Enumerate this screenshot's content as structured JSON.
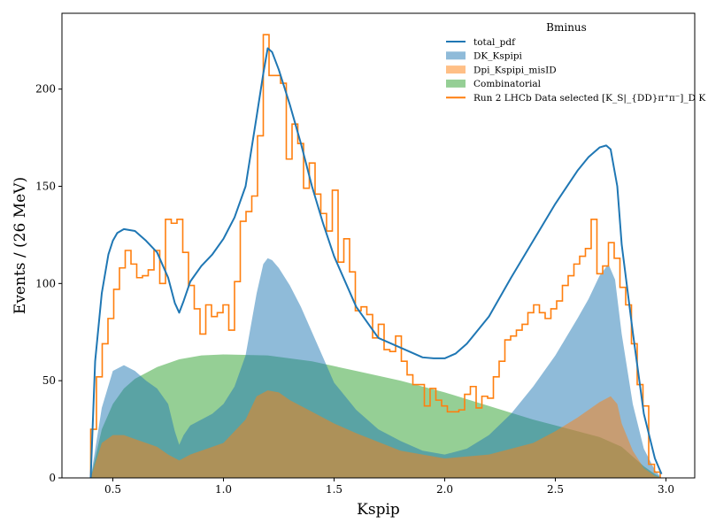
{
  "chart_data": {
    "type": "area",
    "title": "",
    "xlabel": "Kspip",
    "ylabel": "Events / (26 MeV)",
    "xlim": [
      0.27,
      3.13
    ],
    "ylim": [
      0,
      239
    ],
    "xticks": [
      0.5,
      1.0,
      1.5,
      2.0,
      2.5,
      3.0
    ],
    "xtick_labels": [
      "0.5",
      "1.0",
      "1.5",
      "2.0",
      "2.5",
      "3.0"
    ],
    "yticks": [
      0,
      50,
      100,
      150,
      200
    ],
    "ytick_labels": [
      "0",
      "50",
      "100",
      "150",
      "200"
    ],
    "grid": false,
    "legend": {
      "title": "Bminus",
      "placement": "top-right",
      "entries": [
        {
          "label": "total_pdf",
          "kind": "line",
          "color": "#1f77b4"
        },
        {
          "label": "DK_Kspipi",
          "kind": "fill",
          "color": "#1f77b4"
        },
        {
          "label": "Dpi_Kspipi_misID",
          "kind": "fill",
          "color": "#ff7f0e"
        },
        {
          "label": "Combinatorial",
          "kind": "fill",
          "color": "#2ca02c"
        },
        {
          "label": "Run 2 LHCb Data selected [K_S|_{DD}π⁺π⁻]_D K",
          "kind": "line",
          "color": "#ff7f0e"
        }
      ]
    },
    "series": [
      {
        "name": "total_pdf",
        "kind": "line",
        "color": "#1f77b4",
        "x": [
          0.4,
          0.42,
          0.45,
          0.48,
          0.5,
          0.52,
          0.55,
          0.6,
          0.65,
          0.7,
          0.75,
          0.78,
          0.8,
          0.82,
          0.85,
          0.9,
          0.95,
          1.0,
          1.05,
          1.1,
          1.15,
          1.18,
          1.2,
          1.22,
          1.25,
          1.3,
          1.35,
          1.4,
          1.45,
          1.5,
          1.6,
          1.7,
          1.8,
          1.9,
          1.95,
          2.0,
          2.05,
          2.1,
          2.2,
          2.3,
          2.4,
          2.5,
          2.6,
          2.65,
          2.7,
          2.73,
          2.75,
          2.78,
          2.8,
          2.85,
          2.9,
          2.95,
          2.98
        ],
        "y": [
          0,
          60,
          95,
          115,
          122,
          126,
          128,
          127,
          122,
          116,
          103,
          90,
          85,
          91,
          101,
          109,
          115,
          123,
          134,
          150,
          186,
          208,
          221,
          219,
          210,
          192,
          172,
          150,
          131,
          114,
          88,
          72,
          67,
          62,
          61.5,
          61.5,
          64,
          69,
          83,
          103,
          122,
          141,
          158,
          165,
          170,
          171,
          169,
          150,
          120,
          75,
          33,
          10,
          2
        ]
      },
      {
        "name": "DK_Kspipi",
        "kind": "area",
        "color": "#1f77b4",
        "opacity": 0.5,
        "x": [
          0.4,
          0.45,
          0.5,
          0.55,
          0.6,
          0.65,
          0.7,
          0.75,
          0.78,
          0.8,
          0.82,
          0.85,
          0.9,
          0.95,
          1.0,
          1.05,
          1.1,
          1.15,
          1.18,
          1.2,
          1.22,
          1.25,
          1.3,
          1.35,
          1.4,
          1.45,
          1.5,
          1.6,
          1.7,
          1.8,
          1.9,
          2.0,
          2.1,
          2.2,
          2.3,
          2.4,
          2.5,
          2.6,
          2.65,
          2.7,
          2.74,
          2.77,
          2.8,
          2.85,
          2.9,
          2.95,
          2.98
        ],
        "y": [
          0,
          36,
          55,
          58,
          55,
          50,
          46,
          38,
          24,
          17,
          22,
          27,
          30,
          33,
          38,
          47,
          63,
          95,
          110,
          113,
          112,
          108,
          99,
          88,
          75,
          62,
          49,
          35,
          25,
          19,
          14,
          12,
          15,
          22,
          33,
          47,
          63,
          82,
          92,
          104,
          110,
          102,
          74,
          38,
          15,
          4,
          0
        ]
      },
      {
        "name": "Dpi_Kspipi_misID",
        "kind": "area",
        "color": "#ff7f0e",
        "opacity": 0.5,
        "x": [
          0.4,
          0.45,
          0.5,
          0.55,
          0.6,
          0.7,
          0.75,
          0.8,
          0.85,
          0.9,
          1.0,
          1.1,
          1.15,
          1.2,
          1.25,
          1.3,
          1.4,
          1.5,
          1.6,
          1.8,
          2.0,
          2.2,
          2.4,
          2.5,
          2.6,
          2.7,
          2.75,
          2.78,
          2.8,
          2.85,
          2.9,
          2.95,
          2.98
        ],
        "y": [
          0,
          18,
          22,
          22,
          20,
          16,
          12,
          9,
          12,
          14,
          18,
          30,
          42,
          45,
          44,
          40,
          34,
          28,
          23,
          14,
          10,
          12,
          18,
          24,
          31,
          39,
          42,
          38,
          28,
          14,
          5,
          1,
          0
        ]
      },
      {
        "name": "Combinatorial",
        "kind": "area",
        "color": "#2ca02c",
        "opacity": 0.5,
        "x": [
          0.4,
          0.45,
          0.5,
          0.55,
          0.6,
          0.7,
          0.8,
          0.9,
          1.0,
          1.2,
          1.4,
          1.6,
          1.8,
          2.0,
          2.2,
          2.4,
          2.6,
          2.7,
          2.8,
          2.85,
          2.9,
          2.95,
          2.98
        ],
        "y": [
          0,
          25,
          38,
          46,
          51,
          57,
          61,
          63,
          63.5,
          63,
          60,
          55,
          50,
          44,
          37,
          30,
          24,
          21,
          16,
          11,
          6,
          2,
          0
        ]
      },
      {
        "name": "Run 2 LHCb Data selected [K_S|_{DD}π⁺π⁻]_D K",
        "kind": "step",
        "color": "#ff7f0e",
        "bin_width": 0.026,
        "bin_start": [
          0.4,
          0.426,
          0.452,
          0.478,
          0.504,
          0.53,
          0.556,
          0.582,
          0.608,
          0.634,
          0.66,
          0.686,
          0.712,
          0.738,
          0.764,
          0.79,
          0.816,
          0.842,
          0.868,
          0.894,
          0.92,
          0.946,
          0.972,
          0.998,
          1.024,
          1.05,
          1.076,
          1.102,
          1.128,
          1.154,
          1.18,
          1.206,
          1.232,
          1.258,
          1.284,
          1.31,
          1.336,
          1.362,
          1.388,
          1.414,
          1.44,
          1.466,
          1.492,
          1.518,
          1.544,
          1.57,
          1.596,
          1.622,
          1.648,
          1.674,
          1.7,
          1.726,
          1.752,
          1.778,
          1.804,
          1.83,
          1.856,
          1.882,
          1.908,
          1.934,
          1.96,
          1.986,
          2.012,
          2.038,
          2.064,
          2.09,
          2.116,
          2.142,
          2.168,
          2.194,
          2.22,
          2.246,
          2.272,
          2.298,
          2.324,
          2.35,
          2.376,
          2.402,
          2.428,
          2.454,
          2.48,
          2.506,
          2.532,
          2.558,
          2.584,
          2.61,
          2.636,
          2.662,
          2.688,
          2.714,
          2.74,
          2.766,
          2.792,
          2.818,
          2.844,
          2.87,
          2.896,
          2.922,
          2.948
        ],
        "counts": [
          25,
          52,
          69,
          82,
          97,
          108,
          117,
          110,
          103,
          104,
          107,
          117,
          100,
          133,
          131,
          133,
          116,
          99,
          87,
          74,
          89,
          83,
          85,
          89,
          76,
          101,
          132,
          137,
          145,
          176,
          228,
          207,
          207,
          203,
          164,
          182,
          172,
          149,
          162,
          146,
          136,
          127,
          148,
          111,
          123,
          106,
          86,
          88,
          84,
          72,
          79,
          66,
          65,
          73,
          60,
          53,
          48,
          48,
          37,
          46,
          40,
          37,
          34,
          34,
          35,
          43,
          47,
          36,
          42,
          41,
          52,
          60,
          71,
          73,
          76,
          79,
          85,
          89,
          85,
          82,
          87,
          91,
          99,
          104,
          110,
          114,
          118,
          133,
          105,
          109,
          121,
          113,
          98,
          89,
          69,
          48,
          37,
          7,
          3
        ]
      }
    ]
  }
}
